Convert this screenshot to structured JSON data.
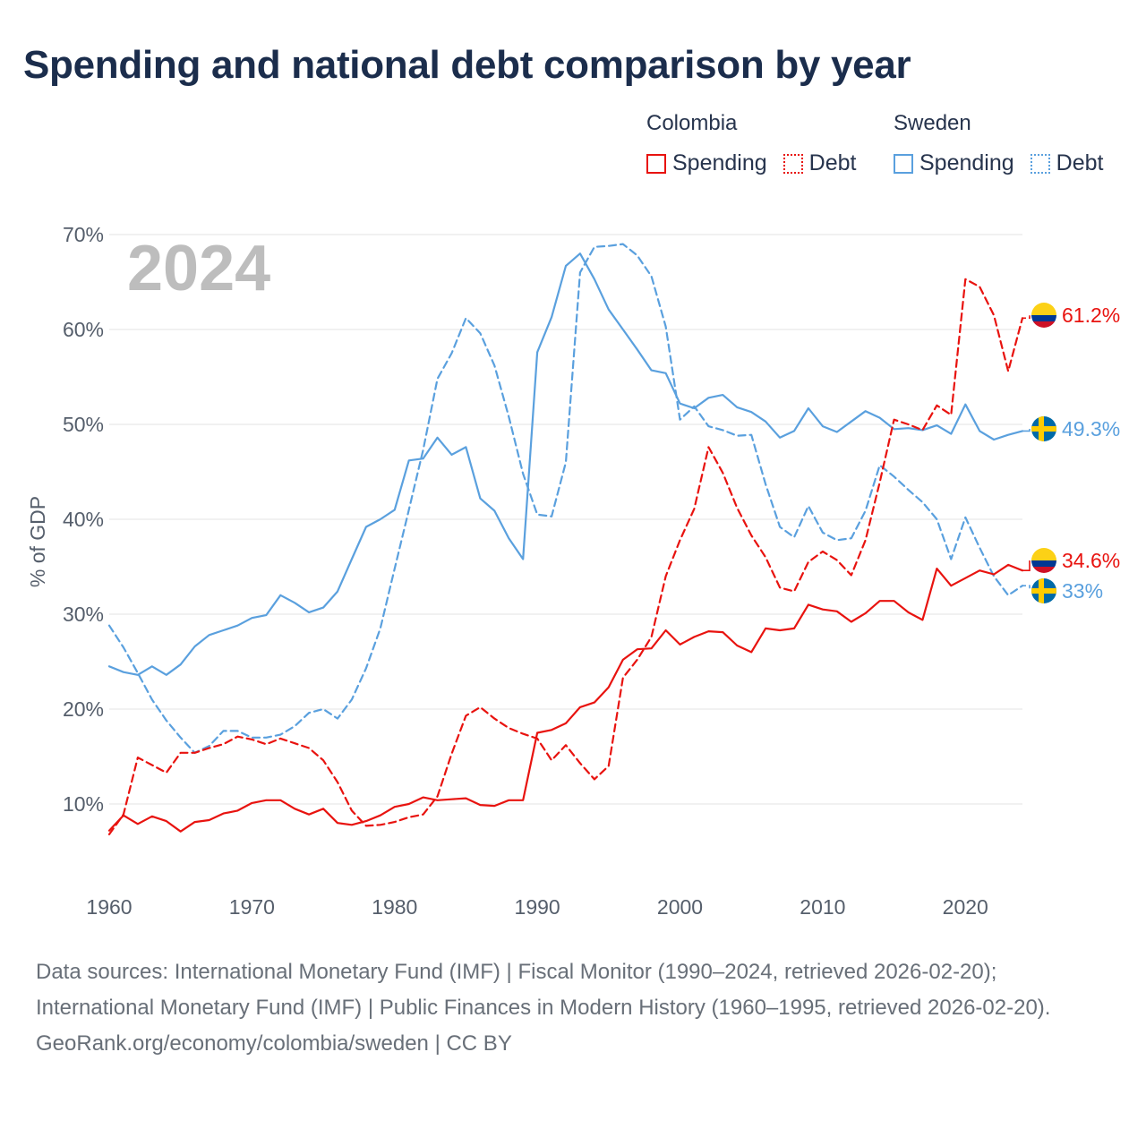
{
  "title": "Spending and national debt comparison by year",
  "legend": [
    {
      "country": "Colombia",
      "color": "#e8130f",
      "items": [
        {
          "label": "Spending",
          "style": "solid"
        },
        {
          "label": "Debt",
          "style": "dotted"
        }
      ]
    },
    {
      "country": "Sweden",
      "color": "#5aa0de",
      "items": [
        {
          "label": "Spending",
          "style": "solid"
        },
        {
          "label": "Debt",
          "style": "dotted"
        }
      ]
    }
  ],
  "footer": {
    "sources": "Data sources: International Monetary Fund (IMF) | Fiscal Monitor (1990–2024, retrieved 2026-02-20); International Monetary Fund (IMF) | Public Finances in Modern History (1960–1995, retrieved 2026-02-20).",
    "attribution": "GeoRank.org/economy/colombia/sweden | CC BY"
  },
  "chart_data": {
    "type": "line",
    "year_label": "2024",
    "ylabel": "% of GDP",
    "xlim": [
      1960,
      2024
    ],
    "ylim": [
      0,
      70
    ],
    "x_ticks": [
      1960,
      1970,
      1980,
      1990,
      2000,
      2010,
      2020
    ],
    "y_ticks": [
      10,
      20,
      30,
      40,
      50,
      60,
      70
    ],
    "y_tick_labels": [
      "10%",
      "20%",
      "30%",
      "40%",
      "50%",
      "60%",
      "70%"
    ],
    "x_start": 1960,
    "series": [
      {
        "name": "Sweden Debt",
        "country": "Sweden",
        "kind": "Debt",
        "color": "#5aa0de",
        "dash": "dashed",
        "end_label": "33%",
        "flag": "sweden",
        "values": [
          28.8,
          26.5,
          23.8,
          21.0,
          18.8,
          17.0,
          15.4,
          16.1,
          17.7,
          17.7,
          17.0,
          17.0,
          17.3,
          18.2,
          19.6,
          20.0,
          19.0,
          21.0,
          24.3,
          28.5,
          34.8,
          41.0,
          47.3,
          54.8,
          57.5,
          61.2,
          59.6,
          56.2,
          50.8,
          44.8,
          40.5,
          40.3,
          46.0,
          66.0,
          68.7,
          68.8,
          69.0,
          67.8,
          65.6,
          60.3,
          50.5,
          51.9,
          49.8,
          49.4,
          48.8,
          48.9,
          43.7,
          39.2,
          38.1,
          41.4,
          38.6,
          37.8,
          38.0,
          40.9,
          45.7,
          44.5,
          43.1,
          41.8,
          40.0,
          35.8,
          40.2,
          37.0,
          34.0,
          32.0,
          33.0
        ]
      },
      {
        "name": "Sweden Spending",
        "country": "Sweden",
        "kind": "Spending",
        "color": "#5aa0de",
        "dash": "solid",
        "end_label": "49.3%",
        "flag": "sweden",
        "values": [
          24.5,
          23.9,
          23.6,
          24.5,
          23.6,
          24.7,
          26.6,
          27.8,
          28.3,
          28.8,
          29.6,
          29.9,
          32.0,
          31.2,
          30.2,
          30.7,
          32.4,
          35.8,
          39.2,
          40.0,
          41.0,
          46.2,
          46.4,
          48.6,
          46.8,
          47.6,
          42.2,
          40.9,
          38.0,
          35.8,
          57.6,
          61.3,
          66.7,
          68.0,
          65.3,
          62.1,
          60.0,
          57.9,
          55.7,
          55.4,
          52.2,
          51.7,
          52.8,
          53.1,
          51.8,
          51.3,
          50.3,
          48.6,
          49.3,
          51.7,
          49.8,
          49.2,
          50.3,
          51.4,
          50.7,
          49.5,
          49.6,
          49.4,
          49.9,
          49.0,
          52.1,
          49.3,
          48.4,
          48.9,
          49.3
        ]
      },
      {
        "name": "Colombia Debt",
        "country": "Colombia",
        "kind": "Debt",
        "color": "#e8130f",
        "dash": "dashed",
        "end_label": "61.2%",
        "flag": "colombia",
        "values": [
          6.8,
          8.9,
          14.9,
          14.1,
          13.3,
          15.4,
          15.4,
          15.9,
          16.3,
          17.1,
          16.8,
          16.3,
          16.9,
          16.4,
          15.9,
          14.6,
          12.3,
          9.3,
          7.7,
          7.8,
          8.1,
          8.6,
          8.9,
          10.8,
          15.3,
          19.3,
          20.2,
          19.0,
          18.0,
          17.4,
          16.9,
          14.6,
          16.2,
          14.3,
          12.6,
          14.0,
          23.3,
          25.2,
          27.6,
          34.0,
          37.8,
          41.1,
          47.6,
          44.9,
          41.2,
          38.3,
          36.0,
          32.8,
          32.4,
          35.5,
          36.6,
          35.7,
          34.1,
          37.8,
          43.9,
          50.5,
          50.0,
          49.4,
          52.0,
          51.0,
          65.3,
          64.5,
          61.5,
          55.6,
          61.2
        ]
      },
      {
        "name": "Colombia Spending",
        "country": "Colombia",
        "kind": "Spending",
        "color": "#e8130f",
        "dash": "solid",
        "end_label": "34.6%",
        "flag": "colombia",
        "values": [
          7.2,
          8.8,
          7.9,
          8.7,
          8.2,
          7.1,
          8.1,
          8.3,
          9.0,
          9.3,
          10.1,
          10.4,
          10.4,
          9.5,
          8.9,
          9.5,
          8.0,
          7.8,
          8.2,
          8.8,
          9.7,
          10.0,
          10.7,
          10.4,
          10.5,
          10.6,
          9.9,
          9.8,
          10.4,
          10.4,
          17.5,
          17.8,
          18.5,
          20.2,
          20.7,
          22.3,
          25.2,
          26.3,
          26.4,
          28.3,
          26.8,
          27.6,
          28.2,
          28.1,
          26.7,
          26.0,
          28.5,
          28.3,
          28.5,
          31.0,
          30.5,
          30.3,
          29.2,
          30.1,
          31.4,
          31.4,
          30.2,
          29.4,
          34.8,
          33.0,
          33.8,
          34.6,
          34.2,
          35.2,
          34.6
        ]
      }
    ]
  }
}
